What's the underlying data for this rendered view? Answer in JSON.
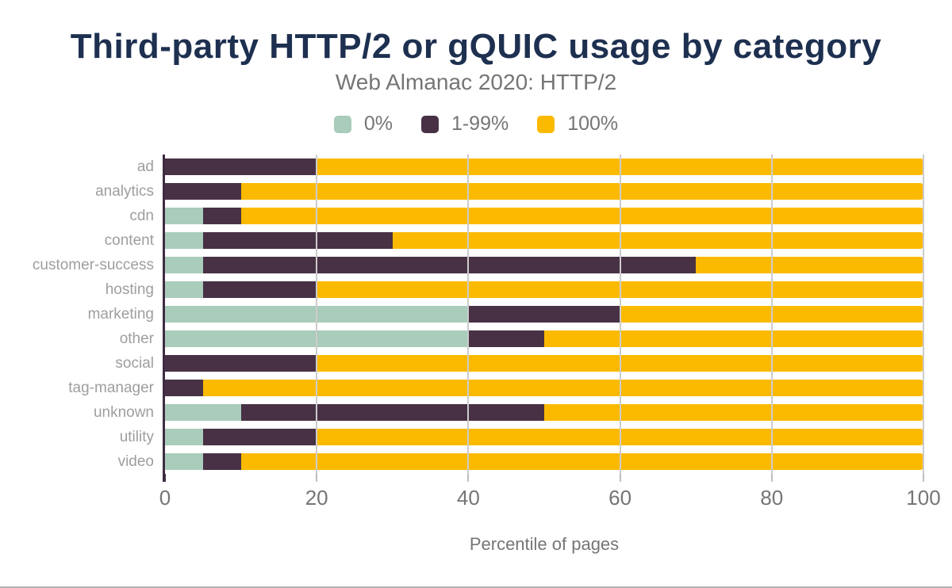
{
  "page": {
    "title": "Third-party HTTP/2 or gQUIC usage by category",
    "subtitle": "Web Almanac 2020: HTTP/2"
  },
  "colors": {
    "title_navy": "#1e3050",
    "subtitle_gray": "#757575",
    "category_label_gray": "#9e9e9e",
    "tick_label_gray": "#757575",
    "axis_line": "#3f2c42",
    "gridline": "#cccccc",
    "series_0pct": "#a9ccbb",
    "series_1_99pct": "#483145",
    "series_100pct": "#fbba00"
  },
  "legend": [
    {
      "label": "0%",
      "color": "#a9ccbb"
    },
    {
      "label": "1-99%",
      "color": "#483145"
    },
    {
      "label": "100%",
      "color": "#fbba00"
    }
  ],
  "chart_data": {
    "type": "bar",
    "orientation": "horizontal",
    "stacked": true,
    "title": "Third-party HTTP/2 or gQUIC usage by category",
    "subtitle": "Web Almanac 2020: HTTP/2",
    "xlabel": "Percentile of pages",
    "ylabel": "",
    "xlim": [
      0,
      100
    ],
    "xticks": [
      0,
      20,
      40,
      60,
      80,
      100
    ],
    "grid": true,
    "legend_position": "top",
    "categories": [
      "ad",
      "analytics",
      "cdn",
      "content",
      "customer-success",
      "hosting",
      "marketing",
      "other",
      "social",
      "tag-manager",
      "unknown",
      "utility",
      "video"
    ],
    "series": [
      {
        "name": "0%",
        "color": "#a9ccbb",
        "values": [
          0,
          0,
          5,
          5,
          5,
          5,
          40,
          40,
          0,
          0,
          10,
          5,
          5
        ]
      },
      {
        "name": "1-99%",
        "color": "#483145",
        "values": [
          20,
          10,
          5,
          25,
          65,
          15,
          20,
          10,
          20,
          5,
          40,
          15,
          5
        ]
      },
      {
        "name": "100%",
        "color": "#fbba00",
        "values": [
          80,
          90,
          90,
          70,
          30,
          80,
          40,
          50,
          80,
          95,
          50,
          80,
          90
        ]
      }
    ]
  }
}
